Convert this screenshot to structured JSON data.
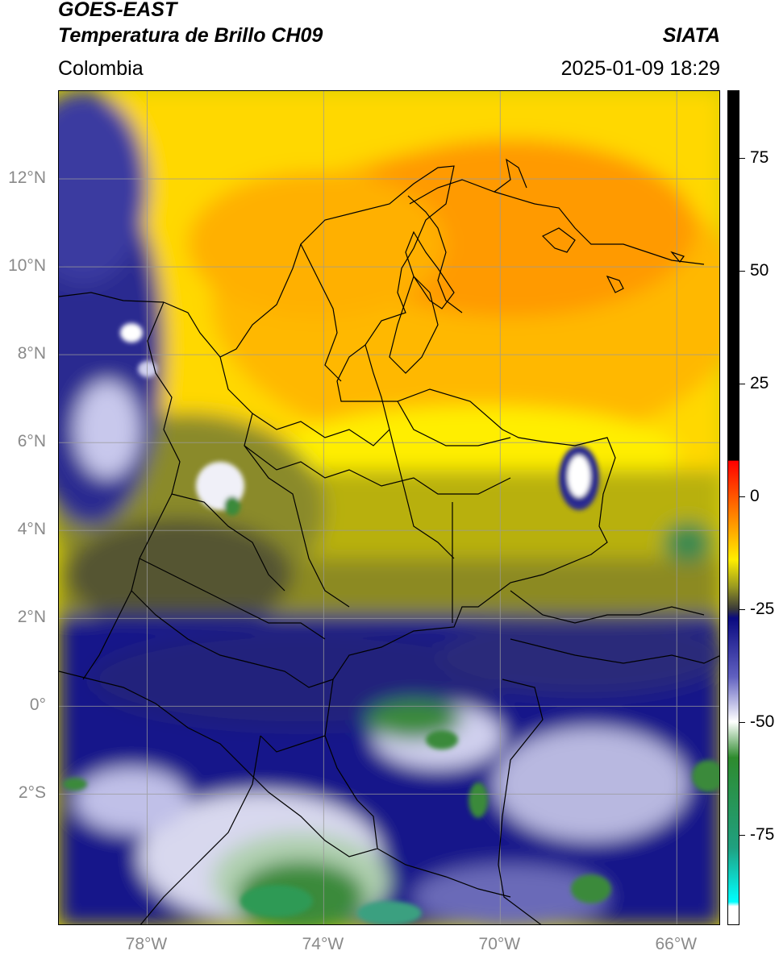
{
  "header": {
    "satellite": "GOES-EAST",
    "product": "Temperatura de Brillo CH09",
    "region": "Colombia",
    "agency": "SIATA",
    "datetime": "2025-01-09 18:29"
  },
  "map": {
    "extent": {
      "lon_min": -80.0,
      "lon_max": -65.0,
      "lat_min": -5.0,
      "lat_max": 14.0
    },
    "lat_ticks": [
      {
        "value": 12,
        "label": "12°N"
      },
      {
        "value": 10,
        "label": "10°N"
      },
      {
        "value": 8,
        "label": "8°N"
      },
      {
        "value": 6,
        "label": "6°N"
      },
      {
        "value": 4,
        "label": "4°N"
      },
      {
        "value": 2,
        "label": "2°N"
      },
      {
        "value": 0,
        "label": "0°"
      },
      {
        "value": -2,
        "label": "2°S"
      }
    ],
    "lon_ticks": [
      {
        "value": -78,
        "label": "78°W"
      },
      {
        "value": -74,
        "label": "74°W"
      },
      {
        "value": -70,
        "label": "70°W"
      },
      {
        "value": -66,
        "label": "66°W"
      }
    ],
    "gridlines": true,
    "grid_color": "#9a9a9a",
    "border_color": "#000000"
  },
  "colorbar": {
    "range": [
      -95,
      90
    ],
    "ticks": [
      {
        "value": 75,
        "label": "75"
      },
      {
        "value": 50,
        "label": "50"
      },
      {
        "value": 25,
        "label": "25"
      },
      {
        "value": 0,
        "label": "0"
      },
      {
        "value": -25,
        "label": "-25"
      },
      {
        "value": -50,
        "label": "-50"
      },
      {
        "value": -75,
        "label": "-75"
      }
    ],
    "stops": [
      {
        "value": 90,
        "color": "#000000"
      },
      {
        "value": 8,
        "color": "#000000"
      },
      {
        "value": 7.9,
        "color": "#ff0000"
      },
      {
        "value": -5,
        "color": "#ff8c00"
      },
      {
        "value": -14,
        "color": "#ffee00"
      },
      {
        "value": -20,
        "color": "#9a9a20"
      },
      {
        "value": -25,
        "color": "#3a3a3a"
      },
      {
        "value": -27,
        "color": "#0a0a80"
      },
      {
        "value": -40,
        "color": "#6060c0"
      },
      {
        "value": -50,
        "color": "#ffffff"
      },
      {
        "value": -58,
        "color": "#2e8b2e"
      },
      {
        "value": -78,
        "color": "#20a080"
      },
      {
        "value": -90,
        "color": "#00ffff"
      },
      {
        "value": -91,
        "color": "#ffffff"
      },
      {
        "value": -95,
        "color": "#ffffff"
      }
    ]
  }
}
